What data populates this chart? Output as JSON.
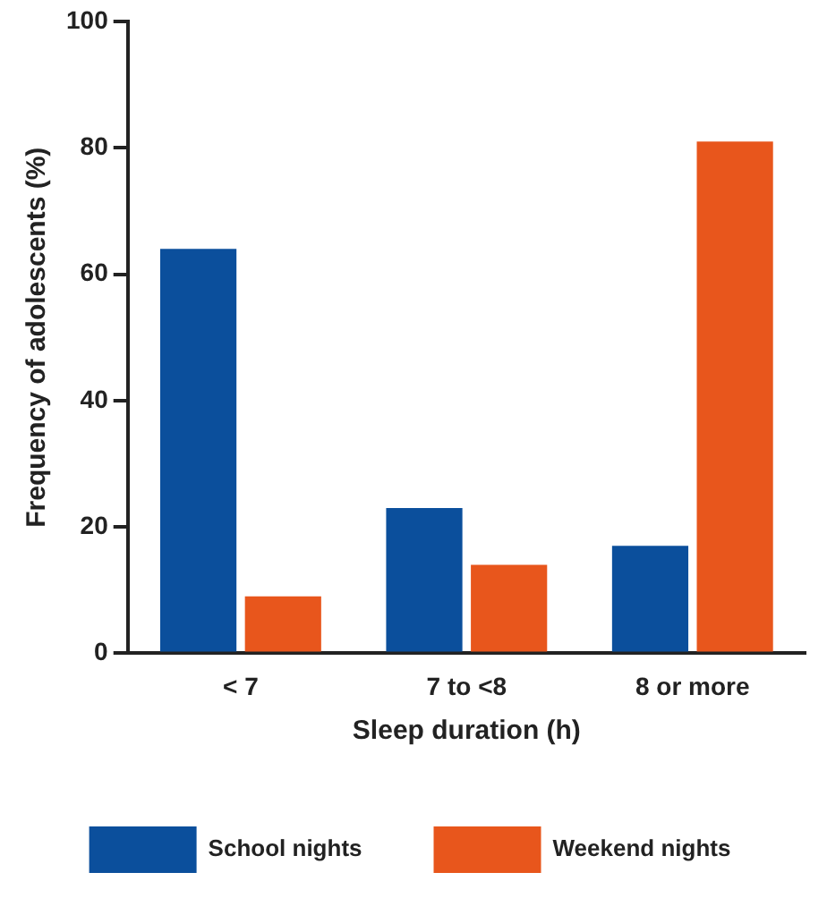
{
  "chart_data": {
    "type": "bar",
    "xlabel": "Sleep duration (h)",
    "ylabel": "Frequency of adolescents (%)",
    "categories": [
      "< 7",
      "7 to <8",
      "8 or more"
    ],
    "series": [
      {
        "name": "School nights",
        "color": "#0b4f9c",
        "values": [
          64,
          23,
          17
        ]
      },
      {
        "name": "Weekend nights",
        "color": "#e8561c",
        "values": [
          9,
          14,
          81
        ]
      }
    ],
    "ylim": [
      0,
      100
    ],
    "yticks": [
      0,
      20,
      40,
      60,
      80,
      100
    ],
    "grid": false,
    "legend": "bottom"
  }
}
